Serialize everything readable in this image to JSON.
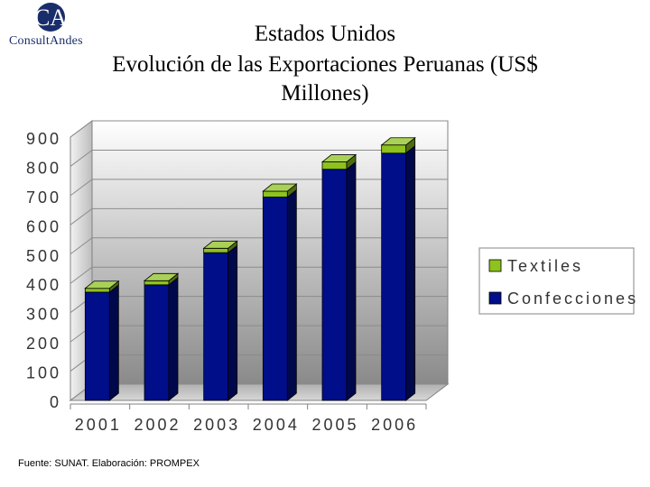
{
  "header": {
    "logo_initials": "CA",
    "logo_name": "ConsultAndes",
    "title_line1": "Estados Unidos",
    "title_line2": "Evolución de las Exportaciones Peruanas  (US$",
    "title_line3": "Millones)"
  },
  "chart_data": {
    "type": "bar",
    "stacked": true,
    "categories": [
      "2001",
      "2002",
      "2003",
      "2004",
      "2005",
      "2006"
    ],
    "series": [
      {
        "name": "Confecciones",
        "values": [
          370,
          395,
          505,
          695,
          790,
          845
        ],
        "color": "#000e8a"
      },
      {
        "name": "Textiles",
        "values": [
          13,
          14,
          15,
          20,
          25,
          28
        ],
        "color": "#8dc21f"
      }
    ],
    "ylim": [
      0,
      900
    ],
    "yticks": [
      "0",
      "100",
      "200",
      "300",
      "400",
      "500",
      "600",
      "700",
      "800",
      "900"
    ],
    "grid": true,
    "legend_position": "right",
    "title": "",
    "xlabel": "",
    "ylabel": ""
  },
  "footer": {
    "source": "Fuente: SUNAT.  Elaboración: PROMPEX"
  }
}
